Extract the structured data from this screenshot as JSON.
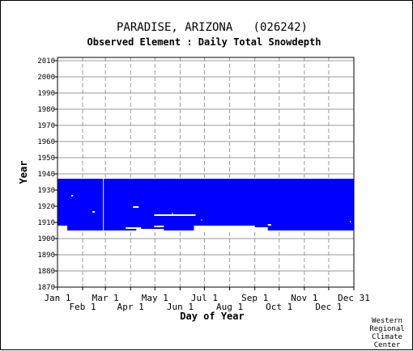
{
  "chart_data": {
    "type": "heatmap",
    "title": "PARADISE, ARIZONA   (026242)",
    "subtitle": "Observed Element : Daily Total Snowdepth",
    "xlabel": "Day of Year",
    "ylabel": "Year",
    "xlim": [
      1,
      366
    ],
    "ylim": [
      1870,
      2012
    ],
    "y_ticks": [
      1870,
      1880,
      1890,
      1900,
      1910,
      1920,
      1930,
      1940,
      1950,
      1960,
      1970,
      1980,
      1990,
      2000,
      2010
    ],
    "x_ticks_upper": [
      {
        "label": "Jan 1",
        "day": 1
      },
      {
        "label": "Mar 1",
        "day": 60
      },
      {
        "label": "May 1",
        "day": 121
      },
      {
        "label": "Jul 1",
        "day": 182
      },
      {
        "label": "Sep 1",
        "day": 244
      },
      {
        "label": "Nov 1",
        "day": 305
      },
      {
        "label": "Dec 31",
        "day": 366
      }
    ],
    "x_ticks_lower": [
      {
        "label": "Feb 1",
        "day": 32
      },
      {
        "label": "Apr 1",
        "day": 91
      },
      {
        "label": "Jun 1",
        "day": 152
      },
      {
        "label": "Aug 1",
        "day": 213
      },
      {
        "label": "Oct 1",
        "day": 274
      },
      {
        "label": "Dec 1",
        "day": 335
      }
    ],
    "grid": true,
    "data_color": "#0000ff",
    "observed_region": {
      "day_start": 1,
      "day_end": 366,
      "year_start": 1905,
      "year_end": 1937
    },
    "observed_bands": [
      {
        "day_start": 1,
        "day_end": 244,
        "year_start": 1936,
        "year_end": 1937
      }
    ],
    "missing_gaps": [
      {
        "day_start": 1,
        "day_end": 13,
        "year_start": 1907,
        "year_end": 1908
      },
      {
        "day_start": 1,
        "day_end": 13,
        "year_start": 1905,
        "year_end": 1907
      },
      {
        "day_start": 18,
        "day_end": 20,
        "year_start": 1926,
        "year_end": 1927
      },
      {
        "day_start": 44,
        "day_end": 47,
        "year_start": 1916,
        "year_end": 1917
      },
      {
        "day_start": 57,
        "day_end": 58,
        "year_start": 1905,
        "year_end": 1937
      },
      {
        "day_start": 94,
        "day_end": 101,
        "year_start": 1919,
        "year_end": 1920
      },
      {
        "day_start": 85,
        "day_end": 104,
        "year_start": 1906,
        "year_end": 1907
      },
      {
        "day_start": 98,
        "day_end": 132,
        "year_start": 1905,
        "year_end": 1906
      },
      {
        "day_start": 120,
        "day_end": 132,
        "year_start": 1907,
        "year_end": 1908
      },
      {
        "day_start": 120,
        "day_end": 171,
        "year_start": 1914,
        "year_end": 1915
      },
      {
        "day_start": 142,
        "day_end": 143,
        "year_start": 1915,
        "year_end": 1916
      },
      {
        "day_start": 169,
        "day_end": 244,
        "year_start": 1905,
        "year_end": 1908
      },
      {
        "day_start": 178,
        "day_end": 179,
        "year_start": 1911,
        "year_end": 1912
      },
      {
        "day_start": 244,
        "day_end": 260,
        "year_start": 1905,
        "year_end": 1907
      },
      {
        "day_start": 260,
        "day_end": 264,
        "year_start": 1908,
        "year_end": 1909
      },
      {
        "day_start": 361,
        "day_end": 362,
        "year_start": 1910,
        "year_end": 1911
      }
    ],
    "credit": [
      "Western",
      "Regional",
      "Climate",
      "Center"
    ]
  }
}
